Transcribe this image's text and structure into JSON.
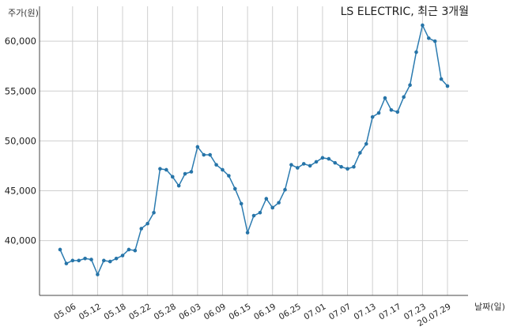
{
  "chart_data": {
    "type": "line",
    "title": "LS ELECTRIC, 최근 3개월",
    "ylabel": "주가(원)",
    "xlabel": "날짜(일)",
    "ylim": [
      34500,
      63500
    ],
    "yticks": [
      40000,
      45000,
      50000,
      55000,
      60000
    ],
    "ytick_labels": [
      "40,000",
      "45,000",
      "50,000",
      "55,000",
      "60,000"
    ],
    "xtick_labels": [
      "05.06",
      "05.12",
      "05.18",
      "05.22",
      "05.28",
      "06.03",
      "06.09",
      "06.15",
      "06.19",
      "06.25",
      "07.01",
      "07.07",
      "07.13",
      "07.17",
      "07.23",
      "20.07.29"
    ],
    "xtick_index": [
      3,
      7,
      11,
      15,
      19,
      23,
      27,
      31,
      35,
      39,
      43,
      47,
      51,
      55,
      59,
      63
    ],
    "grid": true,
    "line_color": "#2b7bb0",
    "series": [
      {
        "values": [
          39100,
          37700,
          38000,
          38000,
          38200,
          38100,
          36600,
          38000,
          37900,
          38200,
          38500,
          39100,
          39000,
          41200,
          41700,
          42800,
          47200,
          47100,
          46400,
          45500,
          46700,
          46900,
          49400,
          48600,
          48600,
          47600,
          47100,
          46500,
          45200,
          43700,
          40800,
          42500,
          42800,
          44200,
          43300,
          43800,
          45100,
          47600,
          47300,
          47700,
          47500,
          47900,
          48300,
          48200,
          47800,
          47400,
          47200,
          47400,
          48800,
          49700,
          52400,
          52800,
          54300,
          53100,
          52900,
          54400,
          55600,
          58900,
          61600,
          60300,
          60000,
          56200,
          55500
        ]
      }
    ]
  }
}
